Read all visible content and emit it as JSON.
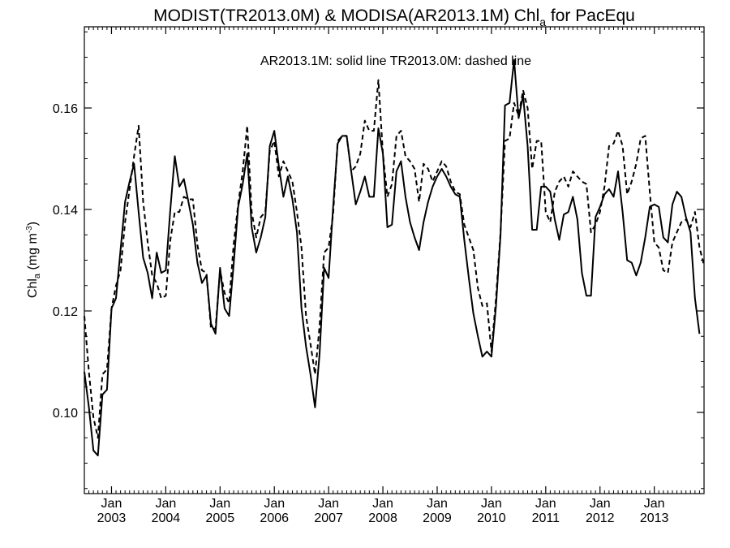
{
  "chart_data": {
    "type": "line",
    "title_main": "MODIST(TR2013.0M) & MODISA(AR2013.1M)  Chl",
    "title_sub": "a",
    "title_tail": " for PacEqu",
    "annotation": "AR2013.1M: solid line   TR2013.0M: dashed line",
    "ylabel_main": "Chl",
    "ylabel_sub": "a",
    "ylabel_unit": " (mg m",
    "ylabel_sup": "-3",
    "ylabel_close": ")",
    "ylim": [
      0.084,
      0.176
    ],
    "yticks": [
      "0.10",
      "0.12",
      "0.14",
      "0.16"
    ],
    "x_start": "2002-07",
    "x_end": "2013-12",
    "xticks": [
      {
        "month": "Jan",
        "year": "2003"
      },
      {
        "month": "Jan",
        "year": "2004"
      },
      {
        "month": "Jan",
        "year": "2005"
      },
      {
        "month": "Jan",
        "year": "2006"
      },
      {
        "month": "Jan",
        "year": "2007"
      },
      {
        "month": "Jan",
        "year": "2008"
      },
      {
        "month": "Jan",
        "year": "2009"
      },
      {
        "month": "Jan",
        "year": "2010"
      },
      {
        "month": "Jan",
        "year": "2011"
      },
      {
        "month": "Jan",
        "year": "2012"
      },
      {
        "month": "Jan",
        "year": "2013"
      }
    ],
    "series": [
      {
        "name": "AR2013.1M",
        "style": "solid",
        "color": "#000000",
        "x_start": "2002-07",
        "values": [
          0.108,
          0.101,
          0.0925,
          0.0915,
          0.1035,
          0.1045,
          0.1205,
          0.1225,
          0.132,
          0.1415,
          0.1455,
          0.149,
          0.1395,
          0.1305,
          0.1275,
          0.1225,
          0.1315,
          0.1275,
          0.128,
          0.14,
          0.1505,
          0.1445,
          0.146,
          0.1415,
          0.137,
          0.1295,
          0.1255,
          0.127,
          0.1175,
          0.1155,
          0.1285,
          0.1205,
          0.119,
          0.129,
          0.1405,
          0.145,
          0.151,
          0.1365,
          0.1315,
          0.1345,
          0.1385,
          0.1525,
          0.1555,
          0.1485,
          0.1425,
          0.1465,
          0.142,
          0.1355,
          0.1205,
          0.113,
          0.1075,
          0.101,
          0.1115,
          0.1285,
          0.1265,
          0.1405,
          0.153,
          0.1545,
          0.1545,
          0.1475,
          0.141,
          0.1435,
          0.1465,
          0.1425,
          0.1425,
          0.156,
          0.151,
          0.1365,
          0.137,
          0.1475,
          0.1495,
          0.1425,
          0.1375,
          0.1345,
          0.132,
          0.1375,
          0.1415,
          0.1445,
          0.1465,
          0.148,
          0.1465,
          0.1445,
          0.143,
          0.1425,
          0.134,
          0.1265,
          0.1195,
          0.115,
          0.111,
          0.112,
          0.111,
          0.121,
          0.135,
          0.1605,
          0.161,
          0.1695,
          0.158,
          0.1625,
          0.1525,
          0.136,
          0.136,
          0.1445,
          0.1445,
          0.1435,
          0.138,
          0.134,
          0.139,
          0.1395,
          0.1425,
          0.138,
          0.1275,
          0.123,
          0.123,
          0.1385,
          0.1405,
          0.143,
          0.144,
          0.1425,
          0.1475,
          0.1395,
          0.13,
          0.1295,
          0.127,
          0.1295,
          0.1345,
          0.1405,
          0.141,
          0.1405,
          0.1345,
          0.1335,
          0.141,
          0.1435,
          0.1425,
          0.1385,
          0.1355,
          0.1225,
          0.1155
        ]
      },
      {
        "name": "TR2013.0M",
        "style": "dashed",
        "color": "#000000",
        "x_start": "2002-07",
        "values": [
          0.119,
          0.108,
          0.099,
          0.095,
          0.1075,
          0.1085,
          0.1205,
          0.125,
          0.128,
          0.1375,
          0.144,
          0.1505,
          0.1565,
          0.1415,
          0.1335,
          0.127,
          0.1255,
          0.1225,
          0.123,
          0.134,
          0.1395,
          0.1395,
          0.1425,
          0.142,
          0.142,
          0.133,
          0.128,
          0.1275,
          0.1165,
          0.1165,
          0.128,
          0.1235,
          0.1215,
          0.133,
          0.141,
          0.1475,
          0.1565,
          0.1395,
          0.1345,
          0.1385,
          0.1395,
          0.1515,
          0.1535,
          0.1465,
          0.1495,
          0.1475,
          0.1455,
          0.1395,
          0.1325,
          0.119,
          0.1135,
          0.1075,
          0.117,
          0.1315,
          0.1325,
          0.139,
          0.1535,
          0.1545,
          0.1545,
          0.1475,
          0.1485,
          0.151,
          0.1575,
          0.1555,
          0.1555,
          0.1655,
          0.151,
          0.1425,
          0.145,
          0.1545,
          0.1555,
          0.1505,
          0.1495,
          0.148,
          0.1415,
          0.149,
          0.148,
          0.1455,
          0.1475,
          0.1495,
          0.1485,
          0.1455,
          0.1435,
          0.143,
          0.137,
          0.1345,
          0.132,
          0.1245,
          0.121,
          0.1215,
          0.112,
          0.1225,
          0.1355,
          0.1535,
          0.154,
          0.161,
          0.1585,
          0.1635,
          0.16,
          0.148,
          0.1535,
          0.1535,
          0.1395,
          0.1375,
          0.1435,
          0.1455,
          0.1465,
          0.1445,
          0.1475,
          0.1465,
          0.1455,
          0.145,
          0.1355,
          0.137,
          0.1395,
          0.1445,
          0.1525,
          0.153,
          0.1555,
          0.1525,
          0.143,
          0.1455,
          0.149,
          0.154,
          0.1545,
          0.1435,
          0.1335,
          0.1325,
          0.128,
          0.1275,
          0.1335,
          0.1355,
          0.1375,
          0.138,
          0.1365,
          0.1395,
          0.1325,
          0.129
        ]
      }
    ]
  }
}
